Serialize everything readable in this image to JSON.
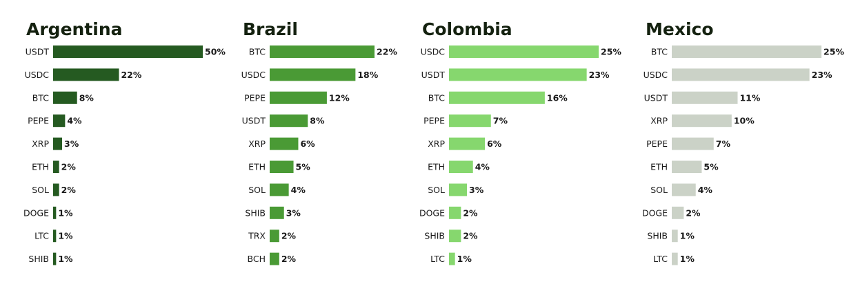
{
  "chart_data": [
    {
      "type": "bar",
      "orientation": "horizontal",
      "title": "Argentina",
      "color": "#255a21",
      "categories": [
        "USDT",
        "USDC",
        "BTC",
        "PEPE",
        "XRP",
        "ETH",
        "SOL",
        "DOGE",
        "LTC",
        "SHIB"
      ],
      "values": [
        50,
        22,
        8,
        4,
        3,
        2,
        2,
        1,
        1,
        1
      ],
      "value_labels": [
        "50%",
        "22%",
        "8%",
        "4%",
        "3%",
        "2%",
        "2%",
        "1%",
        "1%",
        "1%"
      ]
    },
    {
      "type": "bar",
      "orientation": "horizontal",
      "title": "Brazil",
      "color": "#4a9a35",
      "categories": [
        "BTC",
        "USDC",
        "PEPE",
        "USDT",
        "XRP",
        "ETH",
        "SOL",
        "SHIB",
        "TRX",
        "BCH"
      ],
      "values": [
        22,
        18,
        12,
        8,
        6,
        5,
        4,
        3,
        2,
        2
      ],
      "value_labels": [
        "22%",
        "18%",
        "12%",
        "8%",
        "6%",
        "5%",
        "4%",
        "3%",
        "2%",
        "2%"
      ]
    },
    {
      "type": "bar",
      "orientation": "horizontal",
      "title": "Colombia",
      "color": "#86d76e",
      "categories": [
        "USDC",
        "USDT",
        "BTC",
        "PEPE",
        "XRP",
        "ETH",
        "SOL",
        "DOGE",
        "SHIB",
        "LTC"
      ],
      "values": [
        25,
        23,
        16,
        7,
        6,
        4,
        3,
        2,
        2,
        1
      ],
      "value_labels": [
        "25%",
        "23%",
        "16%",
        "7%",
        "6%",
        "4%",
        "3%",
        "2%",
        "2%",
        "1%"
      ]
    },
    {
      "type": "bar",
      "orientation": "horizontal",
      "title": "Mexico",
      "color": "#cbd2c7",
      "categories": [
        "BTC",
        "USDC",
        "USDT",
        "XRP",
        "PEPE",
        "ETH",
        "SOL",
        "DOGE",
        "SHIB",
        "LTC"
      ],
      "values": [
        25,
        23,
        11,
        10,
        7,
        5,
        4,
        2,
        1,
        1
      ],
      "value_labels": [
        "25%",
        "23%",
        "11%",
        "10%",
        "7%",
        "5%",
        "4%",
        "2%",
        "1%",
        "1%"
      ]
    }
  ]
}
